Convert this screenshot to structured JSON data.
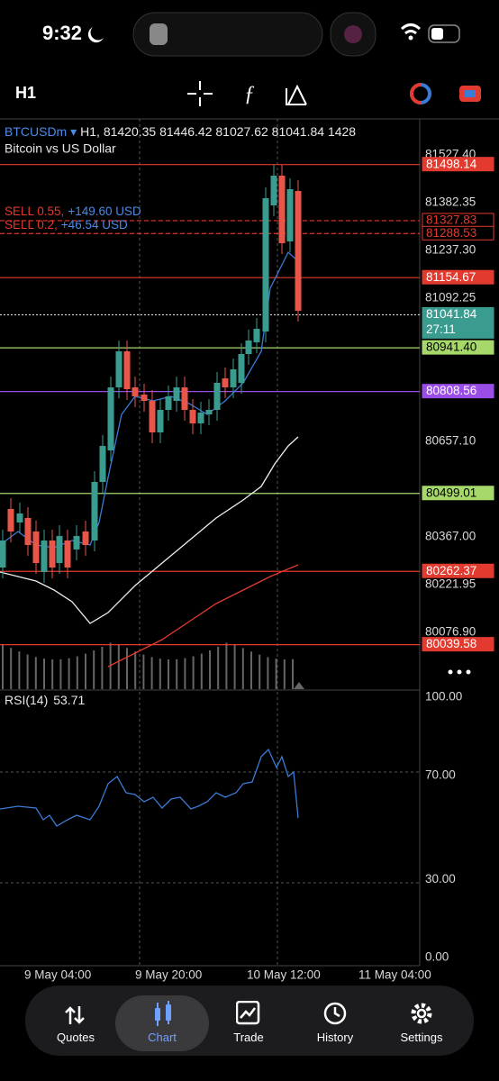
{
  "status_bar": {
    "time": "9:32"
  },
  "toolbar": {
    "timeframe": "H1"
  },
  "chart": {
    "symbol": "BTCUSDm ▾",
    "info": "H1, 81420.35 81446.42 81027.62 81041.84 1428",
    "description": "Bitcoin vs US Dollar",
    "positions": [
      {
        "label": "SELL 0.55,",
        "profit": "+149.60 USD"
      },
      {
        "label": "SELL 0.2,",
        "profit": "+46.54 USD"
      }
    ],
    "price_axis": [
      "81527.40",
      "81382.35",
      "81237.30",
      "81092.25",
      "80657.10",
      "80367.00",
      "80221.95",
      "80076.90"
    ],
    "price_levels": [
      {
        "label": "81498.14",
        "color": "#e23a2e",
        "style": "fill"
      },
      {
        "label": "81327.83",
        "color": "#e23a2e",
        "style": "outline"
      },
      {
        "label": "81288.53",
        "color": "#e23a2e",
        "style": "outline"
      },
      {
        "label": "81154.67",
        "color": "#e23a2e",
        "style": "fill"
      },
      {
        "label": "81041.84",
        "color": "#3a9b8f",
        "style": "current"
      },
      {
        "label": "80941.40",
        "color": "#a6d86a",
        "style": "fill"
      },
      {
        "label": "80808.56",
        "color": "#9b4de8",
        "style": "fill"
      },
      {
        "label": "80499.01",
        "color": "#a6d86a",
        "style": "fill"
      },
      {
        "label": "80262.37",
        "color": "#e23a2e",
        "style": "fill"
      },
      {
        "label": "80039.58",
        "color": "#e23a2e",
        "style": "fill"
      }
    ],
    "countdown": "27:11",
    "rsi": {
      "title": "RSI(14)",
      "value": "53.71",
      "axis": [
        "100.00",
        "70.00",
        "30.00",
        "0.00"
      ]
    },
    "time_axis": [
      "9 May 04:00",
      "9 May 20:00",
      "10 May 12:00",
      "11 May 04:00"
    ]
  },
  "tab_bar": {
    "tabs": [
      {
        "label": "Quotes",
        "active": false
      },
      {
        "label": "Chart",
        "active": true
      },
      {
        "label": "Trade",
        "active": false
      },
      {
        "label": "History",
        "active": false
      },
      {
        "label": "Settings",
        "active": false
      }
    ]
  }
}
